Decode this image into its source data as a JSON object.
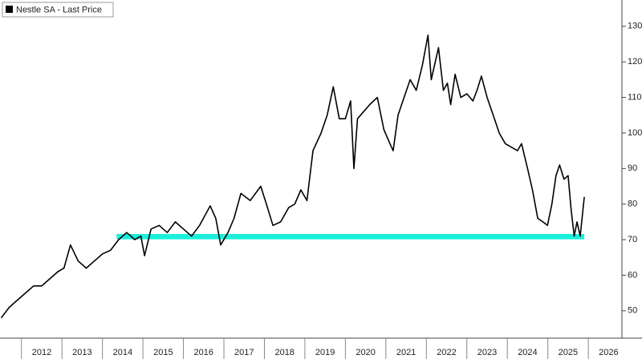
{
  "chart_data": {
    "type": "line",
    "legend": "top-left",
    "series": [
      {
        "name": "Nestle SA - Last Price",
        "color": "#000000",
        "x": [
          2011.5,
          2011.7,
          2011.9,
          2012.1,
          2012.3,
          2012.5,
          2012.7,
          2012.9,
          2013.05,
          2013.21,
          2013.4,
          2013.6,
          2013.8,
          2014.0,
          2014.2,
          2014.4,
          2014.6,
          2014.8,
          2014.95,
          2015.04,
          2015.2,
          2015.4,
          2015.6,
          2015.8,
          2016.0,
          2016.2,
          2016.4,
          2016.66,
          2016.8,
          2016.92,
          2017.1,
          2017.25,
          2017.42,
          2017.65,
          2017.91,
          2018.05,
          2018.21,
          2018.4,
          2018.6,
          2018.75,
          2018.9,
          2019.05,
          2019.2,
          2019.4,
          2019.55,
          2019.7,
          2019.85,
          2020.0,
          2020.13,
          2020.21,
          2020.3,
          2020.45,
          2020.6,
          2020.79,
          2020.95,
          2021.1,
          2021.18,
          2021.3,
          2021.45,
          2021.6,
          2021.75,
          2021.9,
          2022.04,
          2022.12,
          2022.22,
          2022.3,
          2022.42,
          2022.52,
          2022.6,
          2022.71,
          2022.85,
          2023.0,
          2023.15,
          2023.25,
          2023.36,
          2023.5,
          2023.65,
          2023.8,
          2023.95,
          2024.1,
          2024.25,
          2024.35,
          2024.5,
          2024.62,
          2024.75,
          2024.88,
          2024.99,
          2025.1,
          2025.2,
          2025.29,
          2025.4,
          2025.5,
          2025.58,
          2025.65,
          2025.72,
          2025.8,
          2025.9
        ],
        "values": [
          48,
          51,
          53,
          55,
          57,
          57,
          59,
          61,
          62,
          68.5,
          64,
          62,
          64,
          66,
          67,
          70,
          72,
          70,
          71,
          65.5,
          73,
          74,
          72,
          75,
          73,
          71,
          74,
          79.5,
          76,
          68.5,
          72,
          76,
          83,
          81,
          85,
          80,
          74,
          75,
          79,
          80,
          84,
          81,
          95,
          100,
          105,
          113,
          104,
          104,
          109,
          90,
          104,
          106,
          108,
          110,
          101,
          97,
          95,
          105,
          110,
          115,
          112,
          119,
          127.5,
          115,
          120,
          124,
          112,
          114,
          108,
          116.5,
          110,
          111,
          109,
          112,
          116,
          110,
          105,
          100,
          97,
          96,
          95,
          97,
          90,
          84,
          76,
          75,
          74,
          80,
          88,
          91,
          87,
          88,
          78,
          71,
          75,
          71,
          82
        ]
      }
    ],
    "band": {
      "x": [
        2014.35,
        2025.9
      ],
      "y": [
        70.1,
        71.6
      ],
      "color": "#19f0dc"
    },
    "xlim": [
      2011.47,
      2026.83
    ],
    "xticks": [
      2012,
      2013,
      2014,
      2015,
      2016,
      2017,
      2018,
      2019,
      2020,
      2021,
      2022,
      2023,
      2024,
      2025,
      2026
    ],
    "ylim": [
      42.3,
      137.4
    ],
    "yticks": [
      50,
      60,
      70,
      80,
      90,
      100,
      110,
      120,
      130
    ]
  }
}
